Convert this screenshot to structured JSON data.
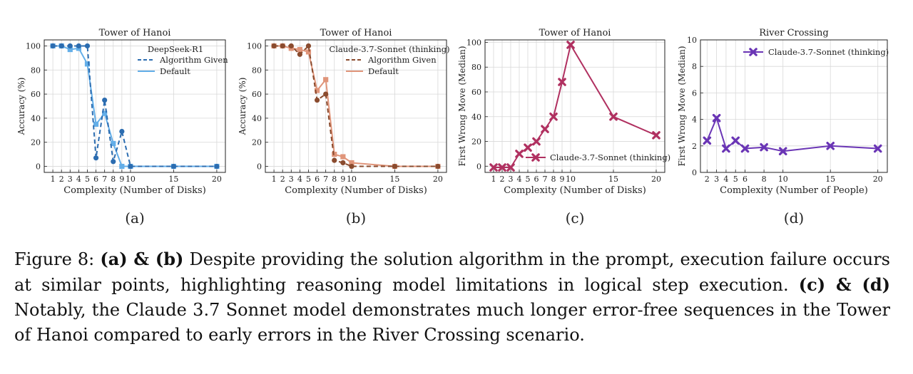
{
  "figure": {
    "panels": [
      {
        "letter": "(a)",
        "title": "Tower of Hanoi",
        "xlabel": "Complexity (Number of Disks)",
        "ylabel": "Accuracy (%)",
        "legend_title": "DeepSeek-R1"
      },
      {
        "letter": "(b)",
        "title": "Tower of Hanoi",
        "xlabel": "Complexity (Number of Disks)",
        "ylabel": "Accuracy (%)",
        "legend_title": "Claude-3.7-Sonnet (thinking)"
      },
      {
        "letter": "(c)",
        "title": "Tower of Hanoi",
        "xlabel": "Complexity (Number of Disks)",
        "ylabel": "First Wrong Move (Median)",
        "legend_title": ""
      },
      {
        "letter": "(d)",
        "title": "River Crossing",
        "xlabel": "Complexity (Number of People)",
        "ylabel": "First Wrong Move (Median)",
        "legend_title": ""
      }
    ]
  },
  "caption": {
    "label": "Figure 8:",
    "s1_bold": "(a) & (b)",
    "s1_text": "Despite providing the solution algorithm in the prompt, execution failure occurs at similar points, highlighting reasoning model limitations in logical step execution.",
    "s2_bold": "(c) & (d)",
    "s2_text": "Notably, the Claude 3.7 Sonnet model demonstrates much longer error-free sequences in the Tower of Hanoi compared to early errors in the River Crossing scenario."
  },
  "chart_data": [
    {
      "type": "line",
      "title": "Tower of Hanoi",
      "xlabel": "Complexity (Number of Disks)",
      "ylabel": "Accuracy (%)",
      "xticks": [
        1,
        2,
        3,
        4,
        5,
        6,
        7,
        8,
        9,
        10,
        15,
        20
      ],
      "yticks": [
        0,
        20,
        40,
        60,
        80,
        100
      ],
      "xlim": [
        0,
        21
      ],
      "ylim": [
        -5,
        105
      ],
      "legend_title": "DeepSeek-R1",
      "legend_position": "top-right",
      "grid": true,
      "series": [
        {
          "name": "Algorithm Given",
          "style": "dashed",
          "marker": "circle",
          "color": "#2b6cb0",
          "x": [
            1,
            2,
            3,
            4,
            5,
            6,
            7,
            8,
            9,
            10,
            15,
            20
          ],
          "y": [
            100,
            100,
            100,
            100,
            100,
            7,
            55,
            4,
            29,
            0,
            0,
            0
          ]
        },
        {
          "name": "Default",
          "style": "solid",
          "marker": "square",
          "color": "#63aee8",
          "x": [
            1,
            2,
            3,
            4,
            5,
            6,
            7,
            8,
            9,
            10,
            15,
            20
          ],
          "y": [
            100,
            100,
            97,
            98,
            85,
            35,
            44,
            19,
            0,
            0,
            0,
            0
          ]
        }
      ]
    },
    {
      "type": "line",
      "title": "Tower of Hanoi",
      "xlabel": "Complexity (Number of Disks)",
      "ylabel": "Accuracy (%)",
      "xticks": [
        1,
        2,
        3,
        4,
        5,
        6,
        7,
        8,
        9,
        10,
        15,
        20
      ],
      "yticks": [
        0,
        20,
        40,
        60,
        80,
        100
      ],
      "xlim": [
        0,
        21
      ],
      "ylim": [
        -5,
        105
      ],
      "legend_title": "Claude-3.7-Sonnet (thinking)",
      "legend_position": "top-right",
      "grid": true,
      "series": [
        {
          "name": "Algorithm Given",
          "style": "dashed",
          "marker": "circle",
          "color": "#8a4b2e",
          "x": [
            1,
            2,
            3,
            4,
            5,
            6,
            7,
            8,
            9,
            10,
            15,
            20
          ],
          "y": [
            100,
            100,
            100,
            93,
            100,
            55,
            60,
            5,
            3,
            0,
            0,
            0
          ]
        },
        {
          "name": "Default",
          "style": "solid",
          "marker": "square",
          "color": "#e0957a",
          "x": [
            1,
            2,
            3,
            4,
            5,
            6,
            7,
            8,
            9,
            10,
            15,
            20
          ],
          "y": [
            100,
            100,
            98,
            97,
            95,
            63,
            72,
            10,
            8,
            3,
            0,
            0
          ]
        }
      ]
    },
    {
      "type": "line",
      "title": "Tower of Hanoi",
      "xlabel": "Complexity (Number of Disks)",
      "ylabel": "First Wrong Move (Median)",
      "xticks": [
        1,
        2,
        3,
        4,
        5,
        6,
        7,
        8,
        9,
        10,
        15,
        20
      ],
      "yticks": [
        0,
        20,
        40,
        60,
        80,
        100
      ],
      "xlim": [
        0,
        21
      ],
      "ylim": [
        -5,
        102
      ],
      "legend_position": "lower-right",
      "grid": true,
      "series": [
        {
          "name": "Claude-3.7-Sonnet (thinking)",
          "style": "solid",
          "marker": "x",
          "color": "#b03060",
          "x": [
            1,
            2,
            3,
            4,
            5,
            6,
            7,
            8,
            9,
            10,
            15,
            20
          ],
          "y": [
            -1,
            -1,
            -1,
            10,
            15,
            20,
            30,
            40,
            68,
            98,
            40,
            25
          ]
        }
      ]
    },
    {
      "type": "line",
      "title": "River Crossing",
      "xlabel": "Complexity (Number of People)",
      "ylabel": "First Wrong Move (Median)",
      "xticks": [
        2,
        3,
        4,
        5,
        6,
        8,
        10,
        15,
        20
      ],
      "yticks": [
        0,
        2,
        4,
        6,
        8,
        10
      ],
      "xlim": [
        1.3,
        21
      ],
      "ylim": [
        0,
        10
      ],
      "legend_position": "top-right",
      "grid": true,
      "series": [
        {
          "name": "Claude-3.7-Sonnet (thinking)",
          "style": "solid",
          "marker": "x",
          "color": "#6a35b5",
          "x": [
            2,
            3,
            4,
            5,
            6,
            8,
            10,
            15,
            20
          ],
          "y": [
            2.4,
            4.1,
            1.8,
            2.4,
            1.8,
            1.9,
            1.6,
            2.0,
            1.8
          ]
        }
      ]
    }
  ]
}
